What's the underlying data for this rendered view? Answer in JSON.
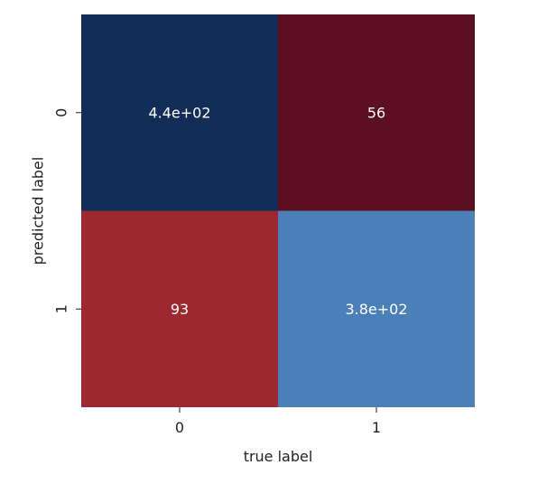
{
  "chart_data": {
    "type": "heatmap",
    "xlabel": "true label",
    "ylabel": "predicted label",
    "x_categories": [
      "0",
      "1"
    ],
    "y_categories": [
      "0",
      "1"
    ],
    "values": [
      [
        440,
        56
      ],
      [
        93,
        380
      ]
    ],
    "cell_text": [
      [
        "4.4e+02",
        "56"
      ],
      [
        "93",
        "3.8e+02"
      ]
    ],
    "cell_colors": [
      [
        "#132d59",
        "#5c0f20"
      ],
      [
        "#9d2830",
        "#4a7fb7"
      ]
    ],
    "colormap": "RdBu",
    "colorbar": false,
    "grid": false
  }
}
